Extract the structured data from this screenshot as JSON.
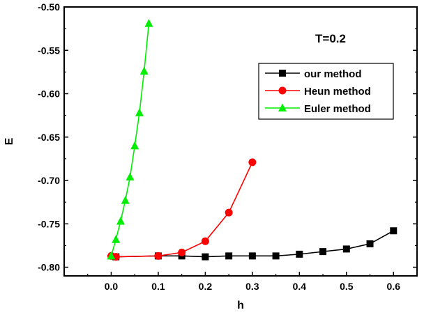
{
  "chart_data": {
    "type": "line",
    "title": "",
    "xlabel": "h",
    "ylabel": "E",
    "annotation": "T=0.2",
    "xlim": [
      -0.1,
      0.65
    ],
    "ylim": [
      -0.81,
      -0.5
    ],
    "xticks": [
      0.0,
      0.1,
      0.2,
      0.3,
      0.4,
      0.5,
      0.6
    ],
    "xtick_labels": [
      "0.0",
      "0.1",
      "0.2",
      "0.3",
      "0.4",
      "0.5",
      "0.6"
    ],
    "yticks": [
      -0.8,
      -0.75,
      -0.7,
      -0.65,
      -0.6,
      -0.55,
      -0.5
    ],
    "ytick_labels": [
      "-0.80",
      "-0.75",
      "-0.70",
      "-0.65",
      "-0.60",
      "-0.55",
      "-0.50"
    ],
    "grid": false,
    "legend_position": "top-right",
    "series": [
      {
        "name": "our method",
        "color": "#000000",
        "marker": "square",
        "x": [
          0.01,
          0.1,
          0.15,
          0.2,
          0.25,
          0.3,
          0.35,
          0.4,
          0.45,
          0.5,
          0.55,
          0.6
        ],
        "y": [
          -0.788,
          -0.787,
          -0.787,
          -0.788,
          -0.787,
          -0.787,
          -0.787,
          -0.785,
          -0.782,
          -0.779,
          -0.773,
          -0.758
        ]
      },
      {
        "name": "Heun method",
        "color": "#ff0000",
        "marker": "circle",
        "x": [
          0.0,
          0.01,
          0.1,
          0.15,
          0.2,
          0.25,
          0.3
        ],
        "y": [
          -0.787,
          -0.788,
          -0.787,
          -0.783,
          -0.77,
          -0.737,
          -0.679
        ]
      },
      {
        "name": "Euler method",
        "color": "#00ee00",
        "marker": "triangle",
        "x": [
          0.0,
          0.01,
          0.02,
          0.03,
          0.04,
          0.05,
          0.06,
          0.07,
          0.08
        ],
        "y": [
          -0.787,
          -0.768,
          -0.747,
          -0.723,
          -0.696,
          -0.66,
          -0.622,
          -0.574,
          -0.519
        ]
      }
    ]
  }
}
